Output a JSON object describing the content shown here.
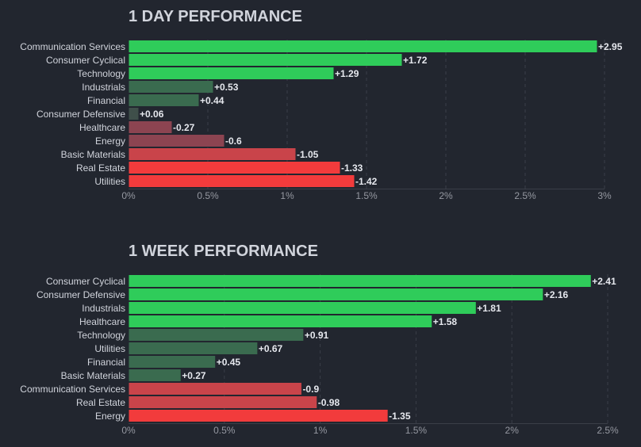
{
  "colors": {
    "background": "#22262f",
    "strong_up": "#2fcc5a",
    "mild_up": "#3a6b4f",
    "neutral_up": "#3f4f4a",
    "strong_down": "#f23b3c",
    "mid_down": "#c9444a",
    "mild_down": "#8c4451"
  },
  "chart_data": [
    {
      "type": "bar",
      "orientation": "horizontal",
      "title": "1 DAY PERFORMANCE",
      "categories": [
        "Communication Services",
        "Consumer Cyclical",
        "Technology",
        "Industrials",
        "Financial",
        "Consumer Defensive",
        "Healthcare",
        "Energy",
        "Basic Materials",
        "Real Estate",
        "Utilities"
      ],
      "values": [
        2.95,
        1.72,
        1.29,
        0.53,
        0.44,
        0.06,
        -0.27,
        -0.6,
        -1.05,
        -1.33,
        -1.42
      ],
      "value_labels": [
        "+2.95",
        "+1.72",
        "+1.29",
        "+0.53",
        "+0.44",
        "+0.06",
        "-0.27",
        "-0.6",
        "-1.05",
        "-1.33",
        "-1.42"
      ],
      "bar_length": "absolute value",
      "xlim": [
        0,
        3
      ],
      "xticks": [
        "0%",
        "0.5%",
        "1%",
        "1.5%",
        "2%",
        "2.5%",
        "3%"
      ],
      "grid": true
    },
    {
      "type": "bar",
      "orientation": "horizontal",
      "title": "1 WEEK PERFORMANCE",
      "categories": [
        "Consumer Cyclical",
        "Consumer Defensive",
        "Industrials",
        "Healthcare",
        "Technology",
        "Utilities",
        "Financial",
        "Basic Materials",
        "Communication Services",
        "Real Estate",
        "Energy"
      ],
      "values": [
        2.41,
        2.16,
        1.81,
        1.58,
        0.91,
        0.67,
        0.45,
        0.27,
        -0.9,
        -0.98,
        -1.35
      ],
      "value_labels": [
        "+2.41",
        "+2.16",
        "+1.81",
        "+1.58",
        "+0.91",
        "+0.67",
        "+0.45",
        "+0.27",
        "-0.9",
        "-0.98",
        "-1.35"
      ],
      "bar_length": "absolute value",
      "xlim": [
        0,
        2.5
      ],
      "xticks": [
        "0%",
        "0.5%",
        "1%",
        "1.5%",
        "2%",
        "2.5%"
      ],
      "grid": true
    }
  ]
}
